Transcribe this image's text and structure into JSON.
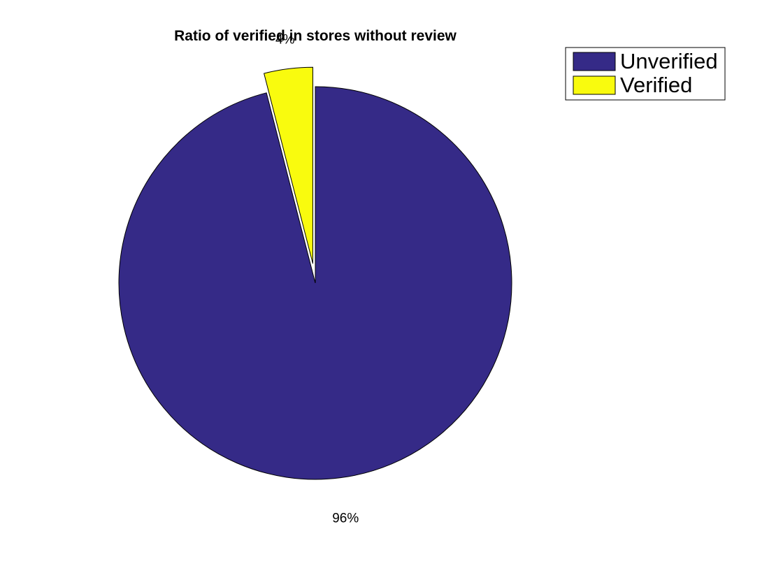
{
  "chart_data": {
    "type": "pie",
    "title": "Ratio of verified in stores without review",
    "slices": [
      {
        "name": "Unverified",
        "value": 96,
        "label": "96%",
        "color": "#352a87",
        "exploded": false
      },
      {
        "name": "Verified",
        "value": 4,
        "label": "4%",
        "color": "#f9fb0e",
        "exploded": true
      }
    ],
    "legend": {
      "placement": "top-right",
      "entries": [
        "Unverified",
        "Verified"
      ]
    },
    "start_angle": "12 o'clock, clockwise"
  }
}
